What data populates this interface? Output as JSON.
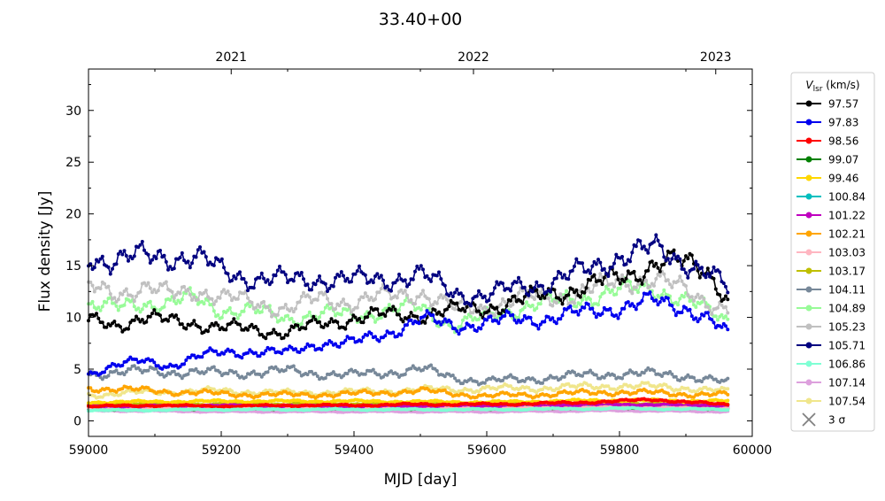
{
  "chart_data": {
    "type": "line",
    "title": "33.40+00",
    "xlabel": "MJD [day]",
    "ylabel": "Flux density [Jy]",
    "xlim": [
      59000,
      60000
    ],
    "ylim": [
      -1.5,
      34
    ],
    "x_ticks": [
      59000,
      59200,
      59400,
      59600,
      59800,
      60000
    ],
    "y_ticks": [
      0,
      5,
      10,
      15,
      20,
      25,
      30
    ],
    "top_axis": {
      "ticks": [
        {
          "label": "2021",
          "mjd": 59215
        },
        {
          "label": "2022",
          "mjd": 59580
        },
        {
          "label": "2023",
          "mjd": 59945
        }
      ]
    },
    "legend": {
      "title_main": "V",
      "title_sub": "lsr",
      "title_unit": " (km/s)",
      "placement": "outside-right",
      "sigma_label": "3 σ",
      "sigma_color": "#808080"
    },
    "data_span": [
      59000,
      59965
    ],
    "series": [
      {
        "name": "97.57",
        "color": "#000000",
        "points": [
          [
            59000,
            9.6
          ],
          [
            59040,
            9.3
          ],
          [
            59080,
            10.0
          ],
          [
            59120,
            9.6
          ],
          [
            59160,
            9.5
          ],
          [
            59200,
            9.0
          ],
          [
            59250,
            8.8
          ],
          [
            59300,
            8.6
          ],
          [
            59350,
            9.3
          ],
          [
            59400,
            10.0
          ],
          [
            59450,
            10.2
          ],
          [
            59500,
            10.3
          ],
          [
            59550,
            10.6
          ],
          [
            59600,
            11.0
          ],
          [
            59650,
            11.5
          ],
          [
            59700,
            12.5
          ],
          [
            59750,
            12.8
          ],
          [
            59800,
            14.0
          ],
          [
            59850,
            15.0
          ],
          [
            59900,
            15.3
          ],
          [
            59930,
            15.0
          ],
          [
            59965,
            11.5
          ]
        ]
      },
      {
        "name": "97.83",
        "color": "#0000ee",
        "points": [
          [
            59000,
            4.5
          ],
          [
            59040,
            5.5
          ],
          [
            59080,
            5.7
          ],
          [
            59120,
            5.3
          ],
          [
            59160,
            6.2
          ],
          [
            59200,
            6.5
          ],
          [
            59250,
            6.8
          ],
          [
            59300,
            6.5
          ],
          [
            59350,
            7.6
          ],
          [
            59400,
            7.5
          ],
          [
            59450,
            8.5
          ],
          [
            59500,
            9.8
          ],
          [
            59550,
            9.2
          ],
          [
            59600,
            9.5
          ],
          [
            59650,
            9.8
          ],
          [
            59700,
            10.0
          ],
          [
            59750,
            10.5
          ],
          [
            59800,
            11.0
          ],
          [
            59850,
            11.5
          ],
          [
            59900,
            11.0
          ],
          [
            59930,
            10.0
          ],
          [
            59965,
            8.2
          ]
        ]
      },
      {
        "name": "98.56",
        "color": "#ff0000",
        "points": [
          [
            59000,
            1.4
          ],
          [
            59100,
            1.5
          ],
          [
            59200,
            1.4
          ],
          [
            59300,
            1.5
          ],
          [
            59400,
            1.5
          ],
          [
            59500,
            1.6
          ],
          [
            59600,
            1.6
          ],
          [
            59700,
            1.7
          ],
          [
            59800,
            1.9
          ],
          [
            59850,
            2.1
          ],
          [
            59900,
            1.8
          ],
          [
            59965,
            1.6
          ]
        ]
      },
      {
        "name": "99.07",
        "color": "#008000",
        "points": [
          [
            59000,
            1.1
          ],
          [
            59200,
            1.2
          ],
          [
            59400,
            1.2
          ],
          [
            59600,
            1.2
          ],
          [
            59800,
            1.3
          ],
          [
            59965,
            1.2
          ]
        ]
      },
      {
        "name": "99.46",
        "color": "#ffd700",
        "points": [
          [
            59000,
            1.8
          ],
          [
            59200,
            1.9
          ],
          [
            59400,
            1.9
          ],
          [
            59600,
            1.8
          ],
          [
            59800,
            2.0
          ],
          [
            59965,
            1.9
          ]
        ]
      },
      {
        "name": "100.84",
        "color": "#00bfbf",
        "points": [
          [
            59000,
            1.2
          ],
          [
            59200,
            1.3
          ],
          [
            59400,
            1.3
          ],
          [
            59600,
            1.3
          ],
          [
            59800,
            1.4
          ],
          [
            59965,
            1.3
          ]
        ]
      },
      {
        "name": "101.22",
        "color": "#bf00bf",
        "points": [
          [
            59000,
            1.4
          ],
          [
            59200,
            1.5
          ],
          [
            59400,
            1.4
          ],
          [
            59600,
            1.5
          ],
          [
            59800,
            1.6
          ],
          [
            59965,
            1.5
          ]
        ]
      },
      {
        "name": "102.21",
        "color": "#ffa500",
        "points": [
          [
            59000,
            3.2
          ],
          [
            59100,
            2.9
          ],
          [
            59200,
            2.6
          ],
          [
            59300,
            2.5
          ],
          [
            59400,
            2.6
          ],
          [
            59500,
            2.9
          ],
          [
            59600,
            2.4
          ],
          [
            59700,
            2.6
          ],
          [
            59800,
            2.8
          ],
          [
            59900,
            2.6
          ],
          [
            59965,
            2.5
          ]
        ]
      },
      {
        "name": "103.03",
        "color": "#ffb6c1",
        "points": [
          [
            59000,
            1.3
          ],
          [
            59200,
            1.3
          ],
          [
            59400,
            1.3
          ],
          [
            59600,
            1.3
          ],
          [
            59800,
            1.4
          ],
          [
            59965,
            1.3
          ]
        ]
      },
      {
        "name": "103.17",
        "color": "#bfbf00",
        "points": [
          [
            59000,
            1.6
          ],
          [
            59200,
            1.6
          ],
          [
            59400,
            1.6
          ],
          [
            59600,
            1.6
          ],
          [
            59800,
            1.7
          ],
          [
            59965,
            1.6
          ]
        ]
      },
      {
        "name": "104.11",
        "color": "#778899",
        "points": [
          [
            59000,
            4.6
          ],
          [
            59100,
            4.8
          ],
          [
            59200,
            4.6
          ],
          [
            59300,
            4.8
          ],
          [
            59400,
            4.4
          ],
          [
            59500,
            5.0
          ],
          [
            59550,
            4.2
          ],
          [
            59600,
            3.8
          ],
          [
            59700,
            4.2
          ],
          [
            59800,
            4.6
          ],
          [
            59900,
            4.4
          ],
          [
            59965,
            3.6
          ]
        ]
      },
      {
        "name": "104.89",
        "color": "#98fb98",
        "points": [
          [
            59000,
            11.2
          ],
          [
            59040,
            10.8
          ],
          [
            59080,
            11.5
          ],
          [
            59120,
            11.3
          ],
          [
            59160,
            11.8
          ],
          [
            59200,
            10.8
          ],
          [
            59250,
            10.5
          ],
          [
            59300,
            10.0
          ],
          [
            59350,
            10.2
          ],
          [
            59400,
            10.3
          ],
          [
            59450,
            10.6
          ],
          [
            59500,
            11.0
          ],
          [
            59550,
            9.2
          ],
          [
            59600,
            10.0
          ],
          [
            59650,
            11.0
          ],
          [
            59700,
            11.5
          ],
          [
            59750,
            12.0
          ],
          [
            59800,
            12.5
          ],
          [
            59850,
            13.0
          ],
          [
            59900,
            11.5
          ],
          [
            59965,
            9.8
          ]
        ]
      },
      {
        "name": "105.23",
        "color": "#c0c0c0",
        "points": [
          [
            59000,
            12.8
          ],
          [
            59040,
            12.5
          ],
          [
            59080,
            12.8
          ],
          [
            59120,
            12.2
          ],
          [
            59160,
            12.8
          ],
          [
            59200,
            11.8
          ],
          [
            59250,
            11.5
          ],
          [
            59300,
            10.8
          ],
          [
            59350,
            11.8
          ],
          [
            59400,
            11.5
          ],
          [
            59450,
            12.0
          ],
          [
            59500,
            12.5
          ],
          [
            59550,
            10.8
          ],
          [
            59600,
            11.0
          ],
          [
            59650,
            11.8
          ],
          [
            59700,
            12.0
          ],
          [
            59750,
            12.5
          ],
          [
            59800,
            13.5
          ],
          [
            59850,
            13.8
          ],
          [
            59900,
            12.5
          ],
          [
            59965,
            10.8
          ]
        ]
      },
      {
        "name": "105.71",
        "color": "#000080",
        "points": [
          [
            59000,
            16.0
          ],
          [
            59040,
            15.5
          ],
          [
            59080,
            15.8
          ],
          [
            59120,
            16.0
          ],
          [
            59160,
            15.8
          ],
          [
            59200,
            14.5
          ],
          [
            59250,
            13.8
          ],
          [
            59300,
            13.5
          ],
          [
            59350,
            13.8
          ],
          [
            59400,
            13.5
          ],
          [
            59450,
            13.8
          ],
          [
            59500,
            14.0
          ],
          [
            59550,
            12.5
          ],
          [
            59600,
            12.0
          ],
          [
            59650,
            13.0
          ],
          [
            59700,
            13.5
          ],
          [
            59750,
            14.5
          ],
          [
            59800,
            16.0
          ],
          [
            59850,
            16.5
          ],
          [
            59900,
            15.5
          ],
          [
            59930,
            14.5
          ],
          [
            59965,
            12.5
          ]
        ]
      },
      {
        "name": "106.86",
        "color": "#7fffd4",
        "points": [
          [
            59000,
            1.0
          ],
          [
            59200,
            1.1
          ],
          [
            59400,
            1.1
          ],
          [
            59600,
            1.1
          ],
          [
            59800,
            1.2
          ],
          [
            59965,
            1.1
          ]
        ]
      },
      {
        "name": "107.14",
        "color": "#dda0dd",
        "points": [
          [
            59000,
            1.0
          ],
          [
            59200,
            0.9
          ],
          [
            59400,
            0.9
          ],
          [
            59600,
            0.9
          ],
          [
            59800,
            1.0
          ],
          [
            59965,
            0.9
          ]
        ]
      },
      {
        "name": "107.54",
        "color": "#f0e68c",
        "points": [
          [
            59000,
            2.5
          ],
          [
            59100,
            2.8
          ],
          [
            59200,
            2.9
          ],
          [
            59300,
            2.7
          ],
          [
            59400,
            2.8
          ],
          [
            59500,
            3.0
          ],
          [
            59600,
            3.1
          ],
          [
            59700,
            3.2
          ],
          [
            59800,
            3.4
          ],
          [
            59900,
            3.2
          ],
          [
            59965,
            2.8
          ]
        ]
      }
    ]
  }
}
